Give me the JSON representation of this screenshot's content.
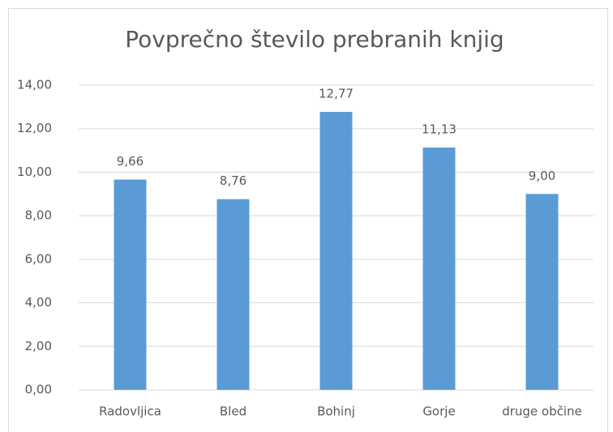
{
  "chart_data": {
    "type": "bar",
    "title": "Povprečno število prebranih knjig",
    "categories": [
      "Radovljica",
      "Bled",
      "Bohinj",
      "Gorje",
      "druge občine"
    ],
    "values": [
      9.66,
      8.76,
      12.77,
      11.13,
      9.0
    ],
    "value_labels": [
      "9,66",
      "8,76",
      "12,77",
      "11,13",
      "9,00"
    ],
    "color": "#5b9bd5",
    "ylim": [
      0,
      14
    ],
    "yticks": [
      {
        "value": 0,
        "label": "0,00"
      },
      {
        "value": 2,
        "label": "2,00"
      },
      {
        "value": 4,
        "label": "4,00"
      },
      {
        "value": 6,
        "label": "6,00"
      },
      {
        "value": 8,
        "label": "8,00"
      },
      {
        "value": 10,
        "label": "10,00"
      },
      {
        "value": 12,
        "label": "12,00"
      },
      {
        "value": 14,
        "label": "14,00"
      }
    ],
    "grid": true
  }
}
